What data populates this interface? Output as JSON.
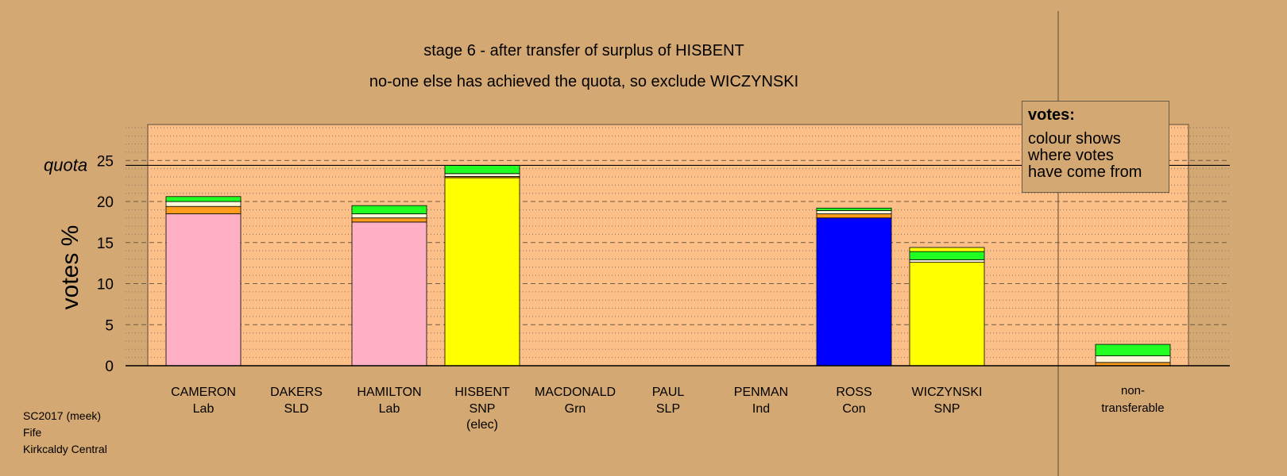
{
  "title": "stage 6 - after transfer of surplus of HISBENT",
  "subtitle": "no-one else has achieved the quota, so exclude WICZYNSKI",
  "legend": {
    "title": "votes:",
    "text": "colour shows\nwhere votes\nhave come from"
  },
  "footer": [
    "SC2017 (meek)",
    "Fife",
    "Kirkcaldy Central"
  ],
  "chart_data": {
    "type": "bar",
    "stacked": true,
    "ylabel": "votes %",
    "ylim": [
      0,
      29.5
    ],
    "yticks": [
      0,
      5,
      10,
      15,
      20,
      25
    ],
    "quota": 24.4,
    "quota_label": "quota",
    "grid": "dotted minor, dashed major",
    "candidates": [
      {
        "name": "CAMERON",
        "party": "Lab",
        "note": "",
        "segments": [
          {
            "color": "#ffb0c4",
            "value": 18.5
          },
          {
            "color": "#ff9c1c",
            "value": 0.9
          },
          {
            "color": "#fff8d8",
            "value": 0.6
          },
          {
            "color": "#22ff22",
            "value": 0.6
          }
        ]
      },
      {
        "name": "DAKERS",
        "party": "SLD",
        "note": "",
        "segments": []
      },
      {
        "name": "HAMILTON",
        "party": "Lab",
        "note": "",
        "segments": [
          {
            "color": "#ffb0c4",
            "value": 17.5
          },
          {
            "color": "#ff9c1c",
            "value": 0.5
          },
          {
            "color": "#fff8d8",
            "value": 0.5
          },
          {
            "color": "#22ff22",
            "value": 1.0
          }
        ]
      },
      {
        "name": "HISBENT",
        "party": "SNP",
        "note": "(elec)",
        "segments": [
          {
            "color": "#ffff00",
            "value": 22.9
          },
          {
            "color": "#ff9c1c",
            "value": 0.15
          },
          {
            "color": "#fff8d8",
            "value": 0.35
          },
          {
            "color": "#22ff22",
            "value": 1.0
          }
        ]
      },
      {
        "name": "MACDONALD",
        "party": "Grn",
        "note": "",
        "segments": []
      },
      {
        "name": "PAUL",
        "party": "SLP",
        "note": "",
        "segments": []
      },
      {
        "name": "PENMAN",
        "party": "Ind",
        "note": "",
        "segments": []
      },
      {
        "name": "ROSS",
        "party": "Con",
        "note": "",
        "segments": [
          {
            "color": "#0000ff",
            "value": 18.0
          },
          {
            "color": "#ff9c1c",
            "value": 0.5
          },
          {
            "color": "#fff8d8",
            "value": 0.4
          },
          {
            "color": "#22ff22",
            "value": 0.3
          }
        ]
      },
      {
        "name": "WICZYNSKI",
        "party": "SNP",
        "note": "",
        "segments": [
          {
            "color": "#ffff00",
            "value": 12.6
          },
          {
            "color": "#fff8d8",
            "value": 0.3
          },
          {
            "color": "#22ff22",
            "value": 1.0
          },
          {
            "color": "#ffff00",
            "value": 0.5
          }
        ]
      }
    ],
    "nontransferable": {
      "label_line1": "non-",
      "label_line2": "transferable",
      "segments": [
        {
          "color": "#ff9c1c",
          "value": 0.4
        },
        {
          "color": "#fff8d8",
          "value": 0.8
        },
        {
          "color": "#22ff22",
          "value": 1.4
        }
      ]
    }
  }
}
